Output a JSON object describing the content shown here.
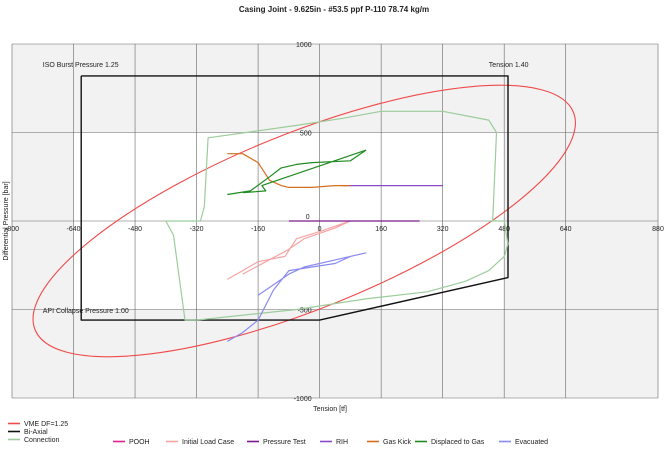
{
  "chart_data": {
    "type": "line",
    "title": "Casing Joint - 9.625in - #53.5 ppf P-110 78.74 kg/m",
    "xlabel": "Tension [tf]",
    "ylabel": "Differential Pressure [bar]",
    "xlim": [
      -800,
      880
    ],
    "ylim": [
      -1000,
      1000
    ],
    "xticks": [
      -800,
      -640,
      -480,
      -320,
      -160,
      0,
      160,
      320,
      480,
      640,
      880
    ],
    "yticks": [
      1000,
      500,
      0,
      -500,
      -1000
    ],
    "shaded_region": "outside [-640, 480] x [-500, 500]",
    "grid": true,
    "annotations": [
      {
        "text": "ISO Burst Pressure 1.25",
        "x": -720,
        "y": 870
      },
      {
        "text": "Tension 1.40",
        "x": 440,
        "y": 870
      },
      {
        "text": "API Collapse Pressure 1.00",
        "x": -720,
        "y": -520
      }
    ],
    "series": [
      {
        "name": "VME DF=1.25",
        "color": "#f04a4a",
        "kind": "ellipse",
        "cx": -40,
        "cy": 0,
        "rx": 755,
        "ry": 495,
        "rotation_deg": -22
      },
      {
        "name": "Bi-Axial",
        "color": "#111111",
        "x": [
          -620,
          490,
          490,
          0,
          -620,
          -620
        ],
        "y": [
          820,
          820,
          -320,
          -560,
          -560,
          820
        ]
      },
      {
        "name": "Connection",
        "color": "#9ccc9c",
        "x": [
          -400,
          -310,
          -300,
          -290,
          -60,
          60,
          160,
          320,
          440,
          460,
          450,
          440,
          480,
          490,
          480,
          440,
          380,
          280,
          120,
          -60,
          -320,
          -350,
          -380,
          -400
        ],
        "y": [
          0,
          0,
          80,
          470,
          540,
          580,
          620,
          620,
          570,
          500,
          0,
          0,
          0,
          -130,
          -200,
          -280,
          -340,
          -400,
          -440,
          -500,
          -560,
          -560,
          -80,
          0
        ]
      },
      {
        "name": "POOH",
        "color": "#e0208f",
        "x": [],
        "y": []
      },
      {
        "name": "Initial Load Case",
        "color": "#f6a4a4",
        "x": [
          -240,
          -200,
          -160,
          -90,
          -60,
          0,
          80,
          40,
          -40,
          -80,
          -140,
          -200
        ],
        "y": [
          -330,
          -280,
          -230,
          -200,
          -100,
          -60,
          0,
          -40,
          -100,
          -160,
          -230,
          -300
        ]
      },
      {
        "name": "Pressure Test",
        "color": "#7a1a8a",
        "x": [
          -80,
          260
        ],
        "y": [
          0,
          0
        ]
      },
      {
        "name": "RIH",
        "color": "#8a4acc",
        "x": [
          60,
          320
        ],
        "y": [
          200,
          200
        ]
      },
      {
        "name": "Gas Kick",
        "color": "#d46e1e",
        "x": [
          -240,
          -200,
          -160,
          -130,
          -100,
          -80,
          -20,
          40,
          80
        ],
        "y": [
          380,
          380,
          330,
          230,
          200,
          190,
          190,
          200,
          200
        ]
      },
      {
        "name": "Displaced to Gas",
        "color": "#1f8a1f",
        "x": [
          -240,
          -180,
          -130,
          -100,
          -60,
          -20,
          80,
          120,
          -150,
          -140,
          -200
        ],
        "y": [
          150,
          170,
          250,
          300,
          320,
          330,
          340,
          400,
          200,
          170,
          160
        ]
      },
      {
        "name": "Evacuated",
        "color": "#8a8af0",
        "x": [
          -240,
          -200,
          -160,
          -120,
          -80,
          -20,
          40,
          80,
          120,
          40,
          -40,
          -80,
          -120,
          -160
        ],
        "y": [
          -680,
          -630,
          -560,
          -390,
          -280,
          -260,
          -240,
          -200,
          -180,
          -220,
          -260,
          -300,
          -360,
          -420
        ]
      }
    ]
  }
}
